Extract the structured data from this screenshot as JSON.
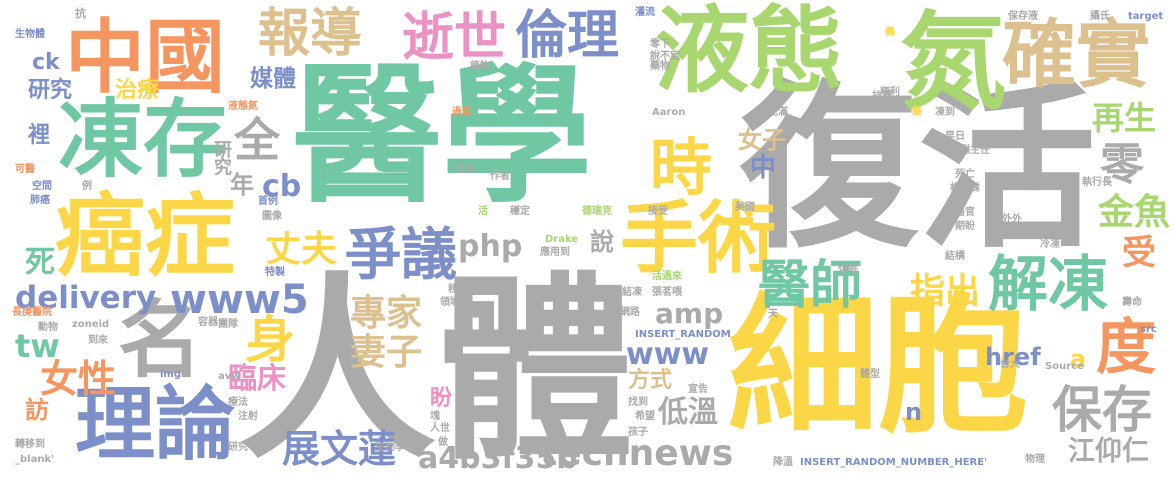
{
  "palette": {
    "gray": "#aaaaaa",
    "teal": "#6fc8a3",
    "green": "#a8d66f",
    "yellow": "#fbd748",
    "blue": "#7c8fc8",
    "orange": "#f5955f",
    "tan": "#dcc08e",
    "pink": "#eb92c4"
  },
  "words": {
    "yixue": "醫學",
    "fuhuo": "復活",
    "renti": "人體",
    "xibao": "細胞",
    "yetai": "液態",
    "dan": "氮",
    "zhongguo": "中國",
    "dongcun": "凍存",
    "aizheng": "癌症",
    "shoushu": "手術",
    "ming": "名",
    "lilun": "理論",
    "baodao": "報導",
    "shishi": "逝世",
    "lunli": "倫理",
    "queshi": "確實",
    "shi": "時",
    "quan": "全",
    "zhengyi": "爭議",
    "yishi": "醫師",
    "jiedong": "解凍",
    "du": "度",
    "baocun": "保存",
    "www5": "www5",
    "technews": "technews",
    "zhanwenlian": "展文蓮",
    "delivery": "delivery",
    "shen": "身",
    "zhangfu": "丈夫",
    "zhuanjia": "專家",
    "qizi": "妻子",
    "nuxing": "女性",
    "zhichu": "指出",
    "zaisheng": "再生",
    "ling": "零",
    "jinyu": "金魚",
    "shou": "受",
    "jiangyangren": "江仰仁",
    "a4b3f35b": "a4b3f35b",
    "php": "php",
    "www": "www",
    "amp": "amp",
    "diwen": "低溫",
    "linchuang": "臨床",
    "tw": "tw",
    "si": "死",
    "cb": "cb",
    "nian": "年",
    "meiti": "媒體",
    "ck": "ck",
    "yanjiu": "研究",
    "zhiliao": "治療",
    "li": "裡",
    "fang": "訪",
    "href": "href",
    "zhong": "中",
    "nuzi": "女子",
    "shuo": "說",
    "fangshi": "方式",
    "pan": "盼",
    "a": "a",
    "n": "n",
    "kang": "抗",
    "shengwuti": "生物體",
    "keyi": "可醫",
    "kongjian": "空間",
    "feiai": "肺癌",
    "li2": "例",
    "yetaidan": "液態氮",
    "shouli": "首例",
    "tuxiang": "圖像",
    "tezhi": "特製",
    "zhiwu": "植物",
    "yaowu": "藥物",
    "guanliu": "灌流",
    "lingxia": "零下",
    "shuobuding": "說不定",
    "guoshi": "過世",
    "yanchang": "延長",
    "zuozhe": "作者",
    "huo": "活",
    "wending": "穩定",
    "derake": "德瑞克",
    "jieshou": "接受",
    "meiguo": "美國",
    "yue": "月",
    "chongman": "充滿",
    "aaron": "Aaron",
    "shunli": "順利",
    "kangning": "抗凝",
    "yao": "藥",
    "dongdao": "凍到",
    "zaori": "早日",
    "fuzhuren": "副主任",
    "siwang": "死亡",
    "yangzongsen": "楊宗霖",
    "qiguan": "器官",
    "fayu": "發育",
    "huoti": "活體",
    "zhixingzhang": "執行長",
    "peihe": "配合",
    "baocunye": "保存液",
    "sheshi": "攝氏",
    "target": "target",
    "waiwai": "外外",
    "qipan": "期盼",
    "yanghua": "氧化",
    "jiegou": "結構",
    "dongleng": "冷凍",
    "xiumian": "休眠",
    "yizhizhongxin": "移植中心",
    "lingyu": "領域",
    "jiedong2": "結凍",
    "zhangmingwei": "張茗喂",
    "huoguolai": "活過來",
    "drake": "Drake",
    "yingyongdao": "應用到",
    "rongqi": "容器",
    "tuandui": "團隊",
    "dongwu": "動物",
    "taolun": "討論",
    "changgengyiyuan": "長庚醫院",
    "zoneid": "zoneid",
    "daolai": "到來",
    "avw": "avw",
    "img": "img",
    "wangluo": "網路",
    "insertrandom": "INSERT_RANDOM",
    "kuai": "塊",
    "renshi": "人世",
    "zuo": "做",
    "liaofa": "療法",
    "zhushe": "注射",
    "zhuanyidao": "轉移到",
    "blank": "_blank'",
    "yanjiuzhongxin": "研究中心",
    "shengwuxue": "生物學",
    "zhaodao": "找到",
    "xiwang": "希望",
    "haizi": "孩子",
    "xuangao": "宣告",
    "tixing": "體型",
    "taida": "台大",
    "source": "Source",
    "wuli": "物理",
    "jiangwen": "降溫",
    "insertnumber": "INSERT_RANDOM_NUMBER_HERE'",
    "shouming": "壽命",
    "src": "src",
    "tian": "天",
    "yi": "義"
  }
}
